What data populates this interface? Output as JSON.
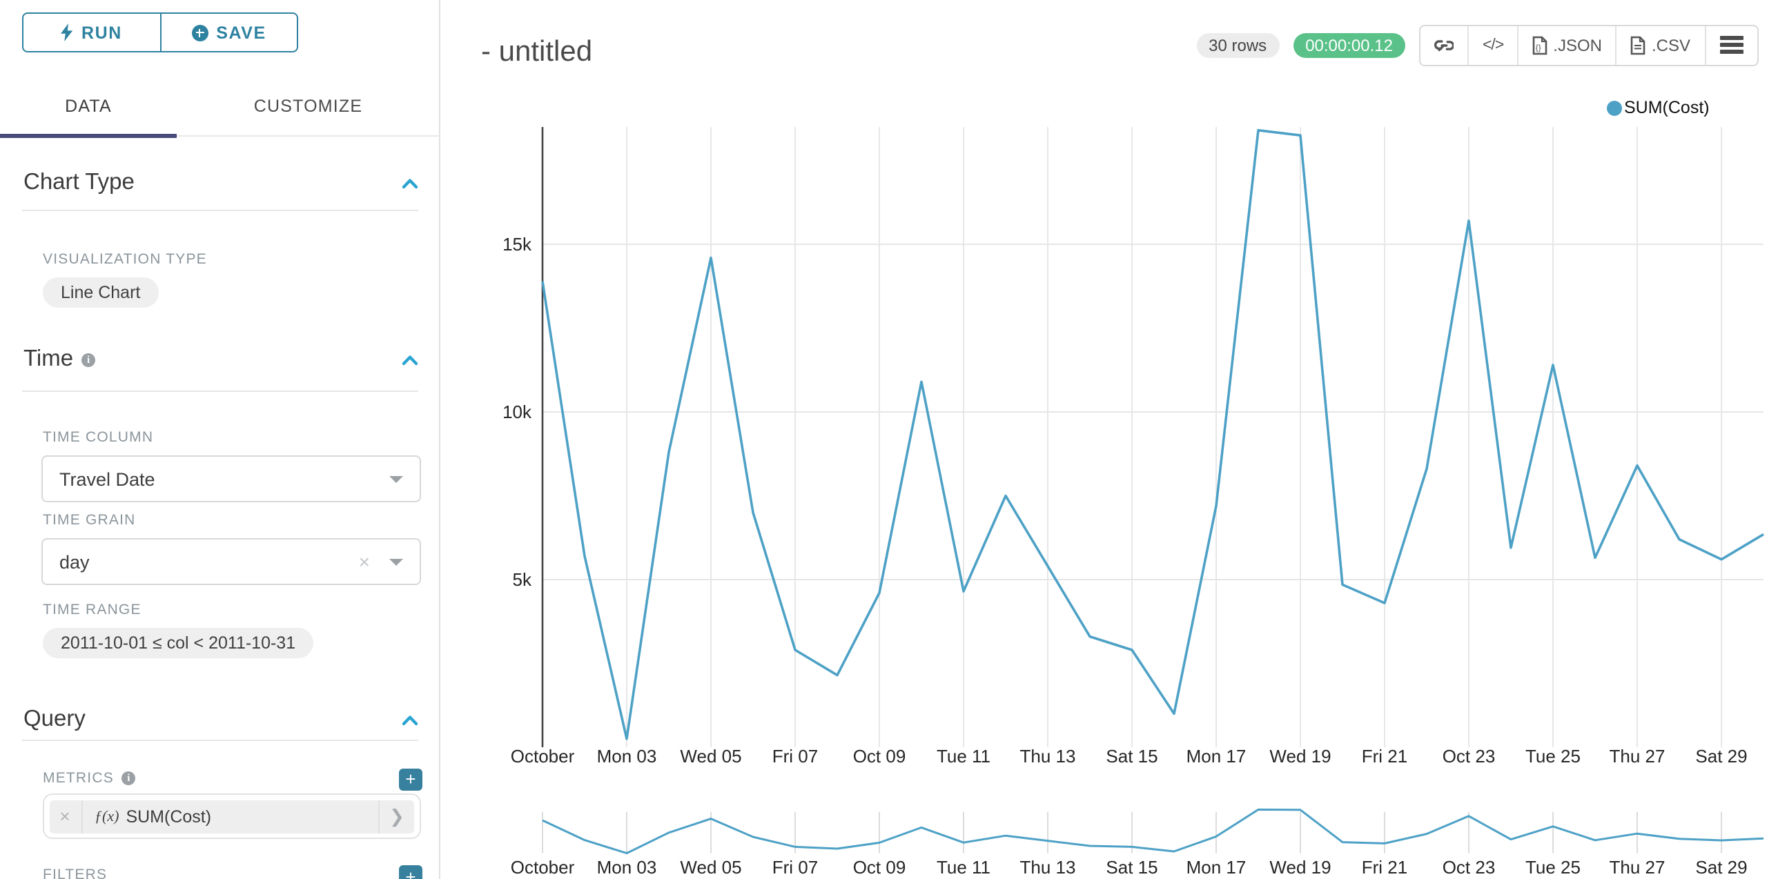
{
  "colors": {
    "accent_teal": "#2E82A0",
    "add_button_teal": "#38819E",
    "collapse_blue": "#2AA4D0",
    "tab_underline": "#484A7B",
    "timer_green": "#5AC189",
    "line_blue": "#4DA1C6"
  },
  "sidebar": {
    "run_label": "RUN",
    "save_label": "SAVE",
    "tabs": {
      "data": "DATA",
      "customize": "CUSTOMIZE"
    },
    "chart_type": {
      "title": "Chart Type",
      "viz_type_label": "VISUALIZATION TYPE",
      "viz_type_value": "Line Chart"
    },
    "time": {
      "title": "Time",
      "time_column_label": "TIME COLUMN",
      "time_column_value": "Travel Date",
      "time_grain_label": "TIME GRAIN",
      "time_grain_value": "day",
      "time_range_label": "TIME RANGE",
      "time_range_value": "2011-10-01 ≤ col < 2011-10-31"
    },
    "query": {
      "title": "Query",
      "metrics_label": "METRICS",
      "metric_fx": "ƒ(x)",
      "metric_value": "SUM(Cost)",
      "filters_label": "FILTERS"
    }
  },
  "header": {
    "title": "- untitled",
    "rows_badge": "30 rows",
    "timer_badge": "00:00:00.12",
    "code_glyph": "</>",
    "export_json_label": ".JSON",
    "export_csv_label": ".CSV"
  },
  "chart_data": {
    "type": "line",
    "title": "",
    "xlabel": "",
    "ylabel": "",
    "x_description": "Daily dates 2011-10-01 through 2011-10-30 (30 points)",
    "series": [
      {
        "name": "SUM(Cost)",
        "values": [
          13900,
          5700,
          250,
          8800,
          14600,
          7000,
          2900,
          2150,
          4600,
          10900,
          4650,
          7500,
          5400,
          3300,
          2900,
          1000,
          7200,
          18400,
          18250,
          4850,
          4300,
          8300,
          15700,
          5950,
          11400,
          5650,
          8400,
          6200,
          5600,
          6350
        ]
      }
    ],
    "xticks": [
      {
        "day": 1,
        "label": "October"
      },
      {
        "day": 3,
        "label": "Mon 03"
      },
      {
        "day": 5,
        "label": "Wed 05"
      },
      {
        "day": 7,
        "label": "Fri 07"
      },
      {
        "day": 9,
        "label": "Oct 09"
      },
      {
        "day": 11,
        "label": "Tue 11"
      },
      {
        "day": 13,
        "label": "Thu 13"
      },
      {
        "day": 15,
        "label": "Sat 15"
      },
      {
        "day": 17,
        "label": "Mon 17"
      },
      {
        "day": 19,
        "label": "Wed 19"
      },
      {
        "day": 21,
        "label": "Fri 21"
      },
      {
        "day": 23,
        "label": "Oct 23"
      },
      {
        "day": 25,
        "label": "Tue 25"
      },
      {
        "day": 27,
        "label": "Thu 27"
      },
      {
        "day": 29,
        "label": "Sat 29"
      }
    ],
    "yticks": [
      {
        "value": 5000,
        "label": "5k"
      },
      {
        "value": 10000,
        "label": "10k"
      },
      {
        "value": 15000,
        "label": "15k"
      }
    ],
    "ylim": [
      0,
      18500
    ],
    "grid": true,
    "legend": {
      "label": "SUM(Cost)",
      "position": "top-right"
    },
    "line_color": "#4DA1C6",
    "context_brush_chart": true
  }
}
